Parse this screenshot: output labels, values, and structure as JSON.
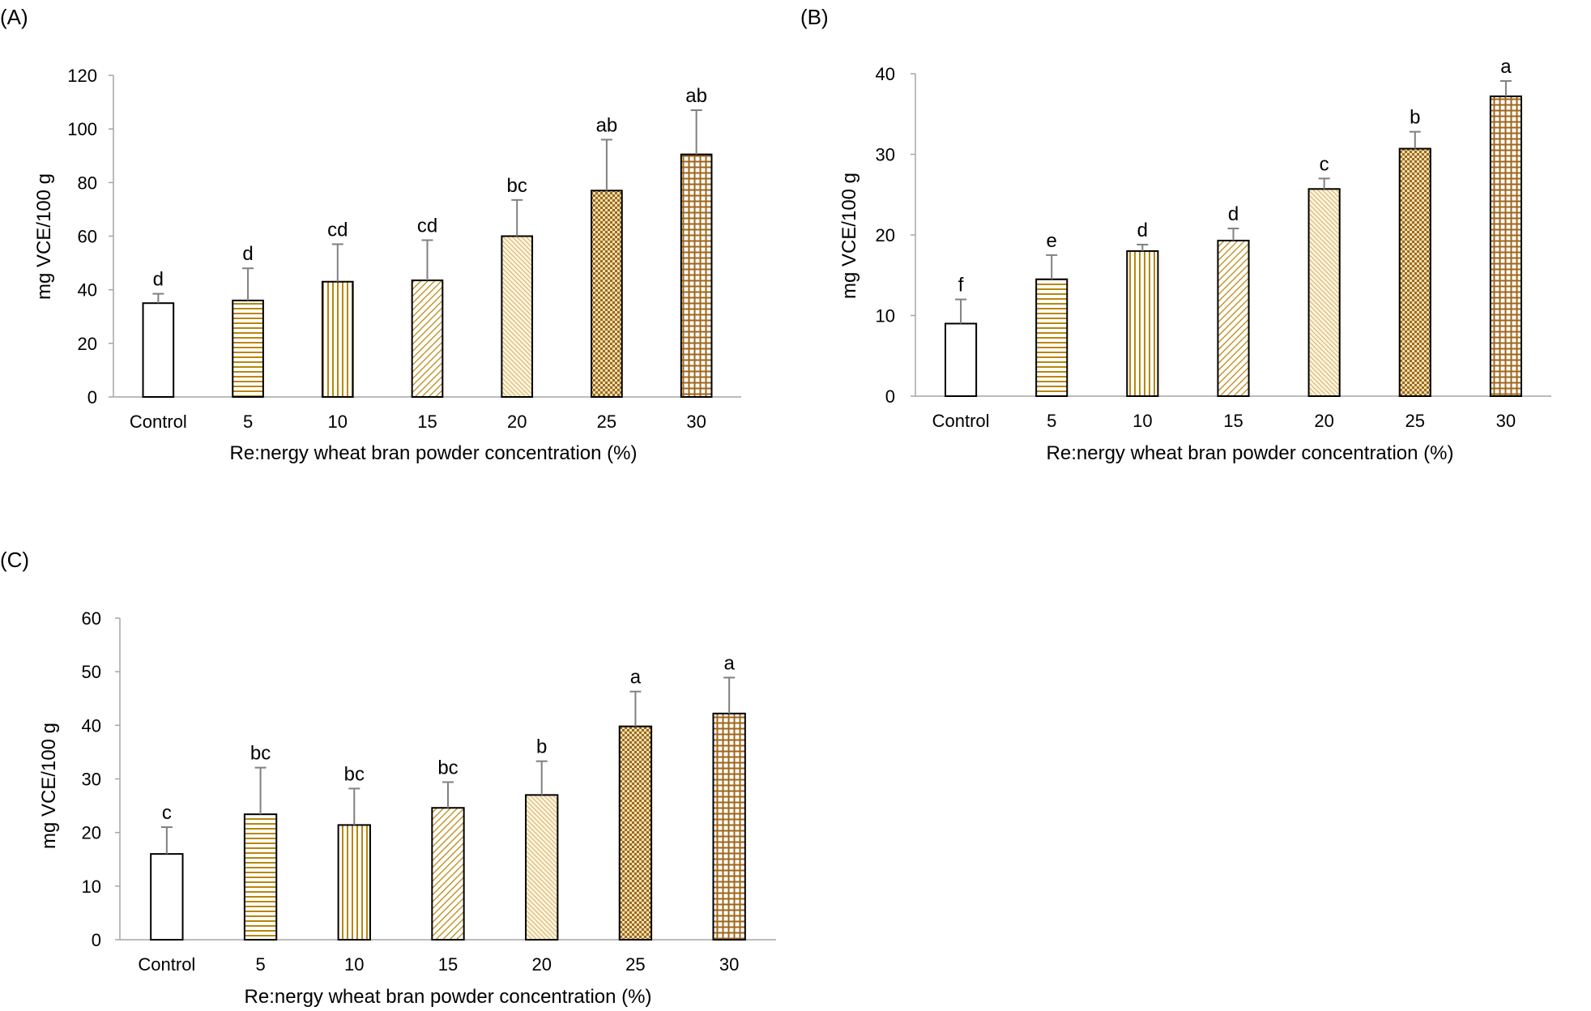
{
  "colors": {
    "pattern": "#b8860b",
    "bar_stroke": "#000000",
    "axis": "#a6a6a6",
    "error_bar": "#808080"
  },
  "chart_data": [
    {
      "panel": "(A)",
      "type": "bar",
      "categories": [
        "Control",
        "5",
        "10",
        "15",
        "20",
        "25",
        "30"
      ],
      "values": [
        35,
        36,
        43,
        43.5,
        60,
        77,
        90.5
      ],
      "errors": [
        3.5,
        12,
        14,
        15,
        13.5,
        19,
        16.5
      ],
      "sig_labels": [
        "d",
        "d",
        "cd",
        "cd",
        "bc",
        "ab",
        "ab"
      ],
      "patterns": [
        "none",
        "hlines",
        "vlines",
        "diag",
        "diag-fine",
        "check",
        "grid"
      ],
      "xlabel": "Re:nergy wheat bran powder concentration (%)",
      "ylabel": "mg VCE/100 g",
      "ylim": [
        0,
        120
      ],
      "yticks": [
        "0",
        "20",
        "40",
        "60",
        "80",
        "100",
        "120"
      ],
      "grid": false
    },
    {
      "panel": "(B)",
      "type": "bar",
      "categories": [
        "Control",
        "5",
        "10",
        "15",
        "20",
        "25",
        "30"
      ],
      "values": [
        9,
        14.5,
        18,
        19.3,
        25.7,
        30.7,
        37.2
      ],
      "errors": [
        3,
        3,
        0.8,
        1.5,
        1.3,
        2.1,
        1.9
      ],
      "sig_labels": [
        "f",
        "e",
        "d",
        "d",
        "c",
        "b",
        "a"
      ],
      "patterns": [
        "none",
        "hlines",
        "vlines",
        "diag",
        "diag-fine",
        "check",
        "grid"
      ],
      "xlabel": "Re:nergy wheat bran powder concentration (%)",
      "ylabel": "mg VCE/100 g",
      "ylim": [
        0,
        40
      ],
      "yticks": [
        "0",
        "10",
        "20",
        "30",
        "40"
      ],
      "grid": false
    },
    {
      "panel": "(C)",
      "type": "bar",
      "categories": [
        "Control",
        "5",
        "10",
        "15",
        "20",
        "25",
        "30"
      ],
      "values": [
        16,
        23.4,
        21.4,
        24.6,
        27,
        39.8,
        42.2
      ],
      "errors": [
        5,
        8.7,
        6.8,
        4.8,
        6.3,
        6.5,
        6.7
      ],
      "sig_labels": [
        "c",
        "bc",
        "bc",
        "bc",
        "b",
        "a",
        "a"
      ],
      "patterns": [
        "none",
        "hlines",
        "vlines",
        "diag",
        "diag-fine",
        "check",
        "grid"
      ],
      "xlabel": "Re:nergy wheat bran powder concentration (%)",
      "ylabel": "mg VCE/100 g",
      "ylim": [
        0,
        60
      ],
      "yticks": [
        "0",
        "10",
        "20",
        "30",
        "40",
        "50",
        "60"
      ],
      "grid": false
    }
  ]
}
